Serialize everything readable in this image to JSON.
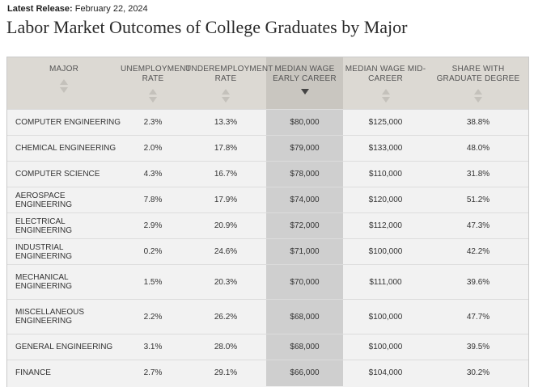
{
  "release": {
    "label": "Latest Release:",
    "date": "February 22, 2024"
  },
  "page_title": "Labor Market Outcomes of College Graduates by Major",
  "table": {
    "headers": [
      "MAJOR",
      "UNEMPLOYMENT RATE",
      "UNDEREMPLOYMENT RATE",
      "MEDIAN WAGE EARLY CAREER",
      "MEDIAN WAGE MID-CAREER",
      "SHARE WITH GRADUATE DEGREE"
    ],
    "sorted_column": "MEDIAN WAGE EARLY CAREER",
    "sort_direction": "descending",
    "rows": [
      [
        "COMPUTER ENGINEERING",
        "2.3%",
        "13.3%",
        "$80,000",
        "$125,000",
        "38.8%"
      ],
      [
        "CHEMICAL ENGINEERING",
        "2.0%",
        "17.8%",
        "$79,000",
        "$133,000",
        "48.0%"
      ],
      [
        "COMPUTER SCIENCE",
        "4.3%",
        "16.7%",
        "$78,000",
        "$110,000",
        "31.8%"
      ],
      [
        "AEROSPACE ENGINEERING",
        "7.8%",
        "17.9%",
        "$74,000",
        "$120,000",
        "51.2%"
      ],
      [
        "ELECTRICAL ENGINEERING",
        "2.9%",
        "20.9%",
        "$72,000",
        "$112,000",
        "47.3%"
      ],
      [
        "INDUSTRIAL ENGINEERING",
        "0.2%",
        "24.6%",
        "$71,000",
        "$100,000",
        "42.2%"
      ],
      [
        "MECHANICAL ENGINEERING",
        "1.5%",
        "20.3%",
        "$70,000",
        "$111,000",
        "39.6%"
      ],
      [
        "MISCELLANEOUS ENGINEERING",
        "2.2%",
        "26.2%",
        "$68,000",
        "$100,000",
        "47.7%"
      ],
      [
        "GENERAL ENGINEERING",
        "3.1%",
        "28.0%",
        "$68,000",
        "$100,000",
        "39.5%"
      ],
      [
        "FINANCE",
        "2.7%",
        "29.1%",
        "$66,000",
        "$104,000",
        "30.2%"
      ]
    ]
  }
}
